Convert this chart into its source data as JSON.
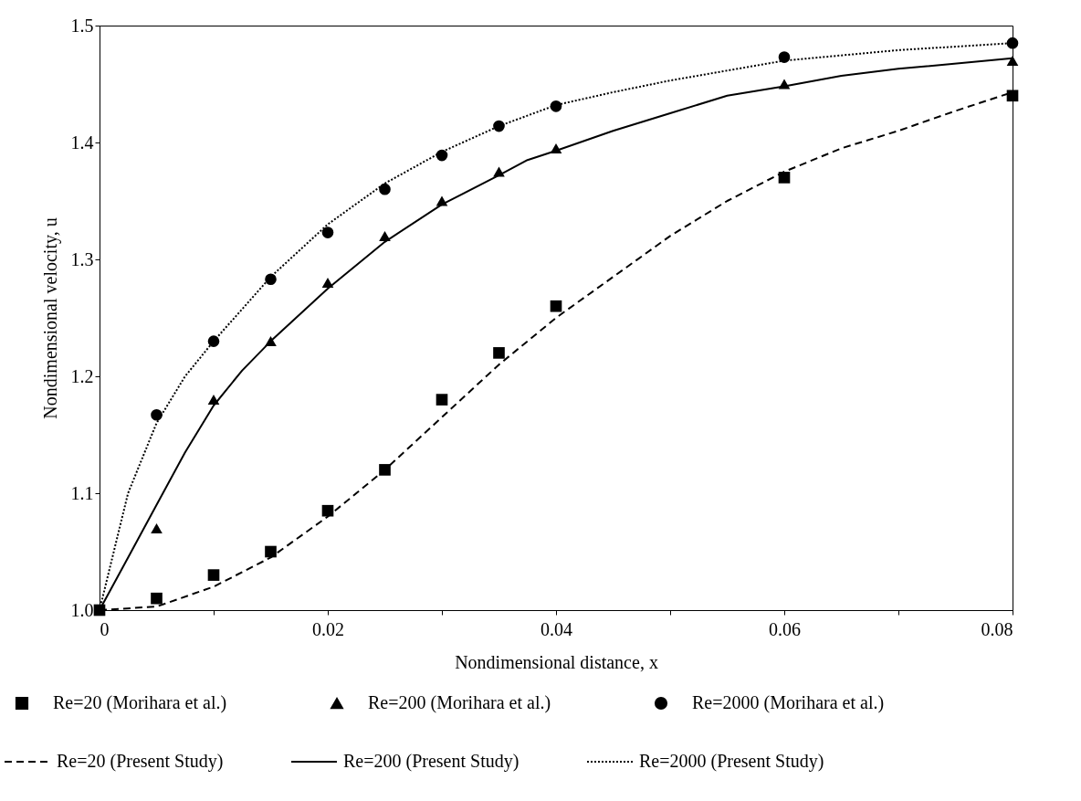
{
  "chart_data": {
    "type": "scatter",
    "xlabel": "Nondimensional distance, x",
    "ylabel": "Nondimensional velocity, u",
    "legend": "bottom",
    "grid": false,
    "xlim": [
      0,
      0.08
    ],
    "xticks": [
      0,
      {
        "value": 0.01,
        "label": null
      },
      0.02,
      {
        "value": 0.03,
        "label": null
      },
      0.04,
      {
        "value": 0.05,
        "label": null
      },
      0.06,
      {
        "value": 0.07,
        "label": null
      },
      0.08
    ],
    "ylim": [
      1,
      1.5
    ],
    "yticks": [
      {
        "value": 1,
        "label": "1.0"
      },
      1.1,
      1.2,
      1.3,
      1.4,
      1.5
    ],
    "series": [
      {
        "name": "Re=20 (Morihara et al.)",
        "type": "scatter",
        "marker": "square",
        "color": "#000000",
        "x": [
          0,
          0.005,
          0.01,
          0.015,
          0.02,
          0.025,
          0.03,
          0.035,
          0.04,
          0.06,
          0.08
        ],
        "values": [
          1.0,
          1.01,
          1.03,
          1.05,
          1.085,
          1.12,
          1.18,
          1.22,
          1.26,
          1.37,
          1.44
        ]
      },
      {
        "name": "Re=200 (Morihara et al.)",
        "type": "scatter",
        "marker": "triangle",
        "color": "#000000",
        "x": [
          0.005,
          0.01,
          0.015,
          0.02,
          0.025,
          0.03,
          0.035,
          0.04,
          0.06,
          0.08
        ],
        "values": [
          1.07,
          1.18,
          1.23,
          1.28,
          1.32,
          1.35,
          1.375,
          1.395,
          1.45,
          1.47
        ]
      },
      {
        "name": "Re=2000 (Morihara et al.)",
        "type": "scatter",
        "marker": "circle",
        "color": "#000000",
        "x": [
          0.005,
          0.01,
          0.015,
          0.02,
          0.025,
          0.03,
          0.035,
          0.04,
          0.06,
          0.08
        ],
        "values": [
          1.167,
          1.23,
          1.283,
          1.323,
          1.36,
          1.389,
          1.414,
          1.431,
          1.473,
          1.485
        ]
      },
      {
        "name": "Re=20 (Present Study)",
        "type": "line",
        "line_style": "dashed",
        "color": "#000000",
        "x": [
          0,
          0.005,
          0.01,
          0.015,
          0.02,
          0.025,
          0.03,
          0.035,
          0.04,
          0.045,
          0.05,
          0.055,
          0.06,
          0.065,
          0.07,
          0.075,
          0.08
        ],
        "values": [
          1.0,
          1.003,
          1.02,
          1.045,
          1.08,
          1.12,
          1.165,
          1.21,
          1.25,
          1.285,
          1.32,
          1.35,
          1.375,
          1.395,
          1.41,
          1.427,
          1.443
        ]
      },
      {
        "name": "Re=200 (Present Study)",
        "type": "line",
        "line_style": "solid",
        "color": "#000000",
        "x": [
          0,
          0.0025,
          0.005,
          0.0075,
          0.01,
          0.0125,
          0.015,
          0.02,
          0.025,
          0.03,
          0.035,
          0.0375,
          0.04,
          0.045,
          0.05,
          0.055,
          0.06,
          0.065,
          0.07,
          0.08
        ],
        "values": [
          1.0,
          1.045,
          1.09,
          1.135,
          1.175,
          1.205,
          1.23,
          1.275,
          1.315,
          1.347,
          1.372,
          1.385,
          1.393,
          1.41,
          1.425,
          1.44,
          1.448,
          1.457,
          1.463,
          1.472
        ]
      },
      {
        "name": "Re=2000 (Present Study)",
        "type": "line",
        "line_style": "dotted",
        "color": "#000000",
        "x": [
          0,
          0.0025,
          0.005,
          0.0075,
          0.01,
          0.015,
          0.02,
          0.025,
          0.03,
          0.035,
          0.04,
          0.045,
          0.05,
          0.06,
          0.07,
          0.08
        ],
        "values": [
          1.0,
          1.1,
          1.16,
          1.2,
          1.23,
          1.285,
          1.33,
          1.365,
          1.392,
          1.414,
          1.432,
          1.443,
          1.453,
          1.47,
          1.479,
          1.485
        ]
      }
    ]
  }
}
